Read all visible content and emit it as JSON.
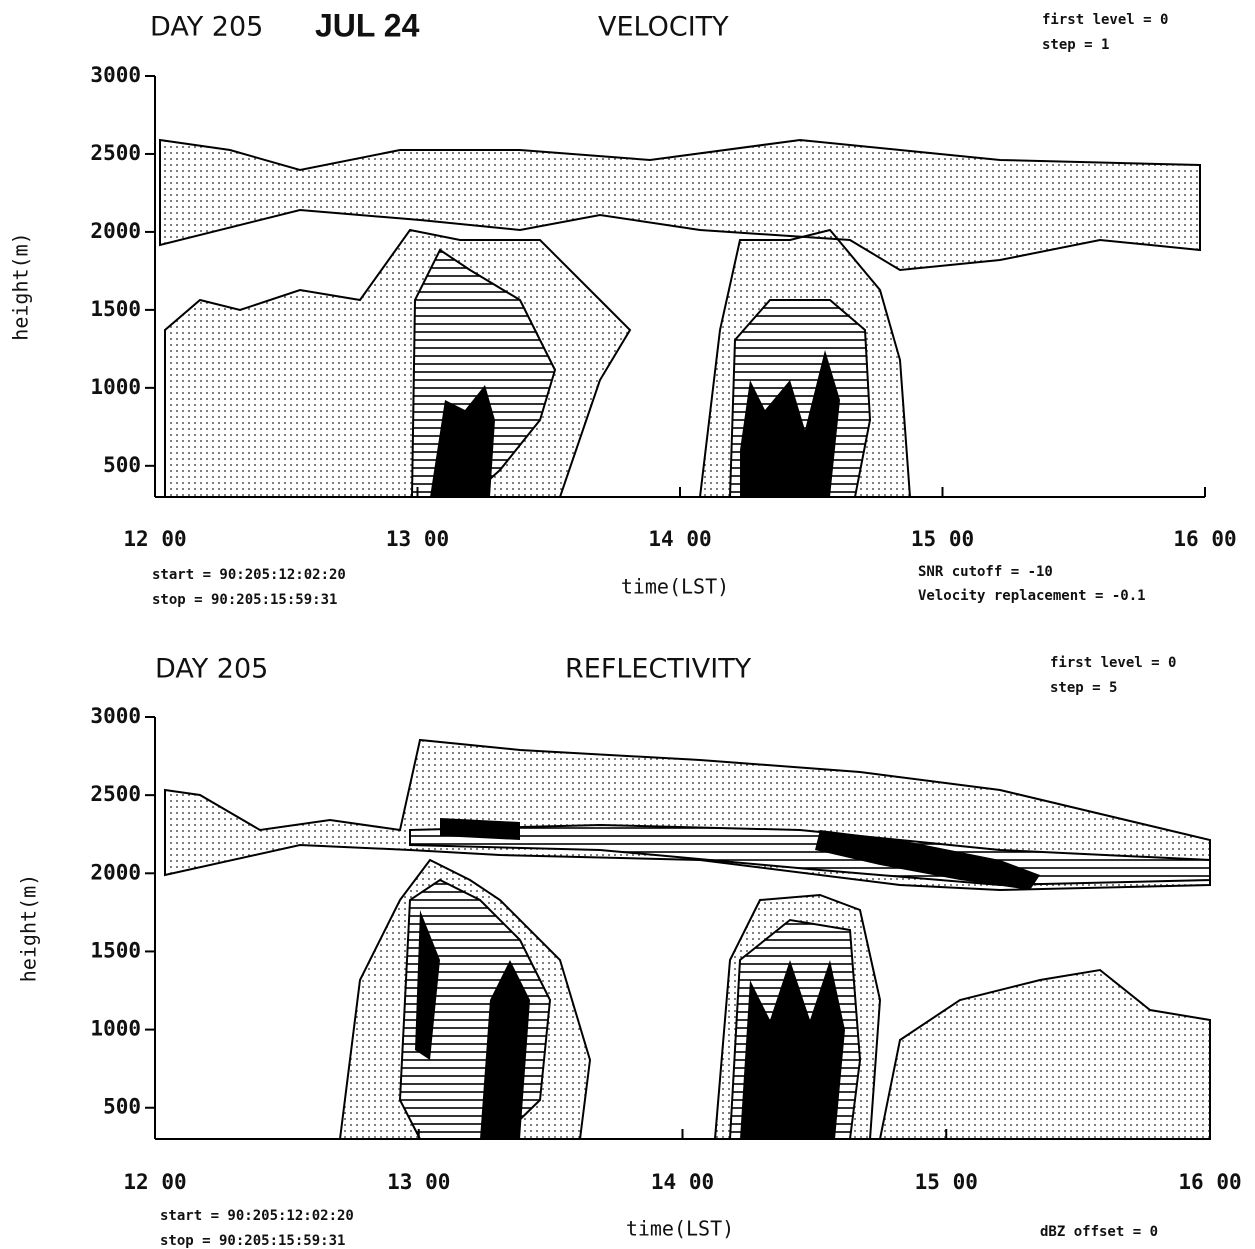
{
  "chart_data": [
    {
      "type": "contour",
      "day": "DAY 205",
      "date": "JUL 24",
      "title": "VELOCITY",
      "xlabel": "time(LST)",
      "ylabel": "height(m)",
      "xlim": [
        12,
        16
      ],
      "ylim": [
        300,
        3000
      ],
      "xticks": [
        {
          "value": 12,
          "label": "12 00"
        },
        {
          "value": 13,
          "label": "13 00"
        },
        {
          "value": 14,
          "label": "14 00"
        },
        {
          "value": 15,
          "label": "15 00"
        },
        {
          "value": 16,
          "label": "16 00"
        }
      ],
      "yticks": [
        500,
        1000,
        1500,
        2000,
        2500,
        3000
      ],
      "notes_top": [
        "first level = 0",
        "step = 1"
      ],
      "notes_left": [
        "start = 90:205:12:02:20",
        "stop = 90:205:15:59:31"
      ],
      "notes_right": [
        "SNR cutoff = -10",
        "Velocity replacement = -0.1"
      ]
    },
    {
      "type": "contour",
      "day": "DAY 205",
      "title": "REFLECTIVITY",
      "xlabel": "time(LST)",
      "ylabel": "height(m)",
      "xlim": [
        12,
        16
      ],
      "ylim": [
        300,
        3000
      ],
      "xticks": [
        {
          "value": 12,
          "label": "12 00"
        },
        {
          "value": 13,
          "label": "13 00"
        },
        {
          "value": 14,
          "label": "14 00"
        },
        {
          "value": 15,
          "label": "15 00"
        },
        {
          "value": 16,
          "label": "16 00"
        }
      ],
      "yticks": [
        500,
        1000,
        1500,
        2000,
        2500,
        3000
      ],
      "notes_top": [
        "first level = 0",
        "step = 5"
      ],
      "notes_left": [
        "start = 90:205:12:02:20",
        "stop = 90:205:15:59:31"
      ],
      "notes_right": [
        "dBZ offset = 0"
      ]
    }
  ]
}
